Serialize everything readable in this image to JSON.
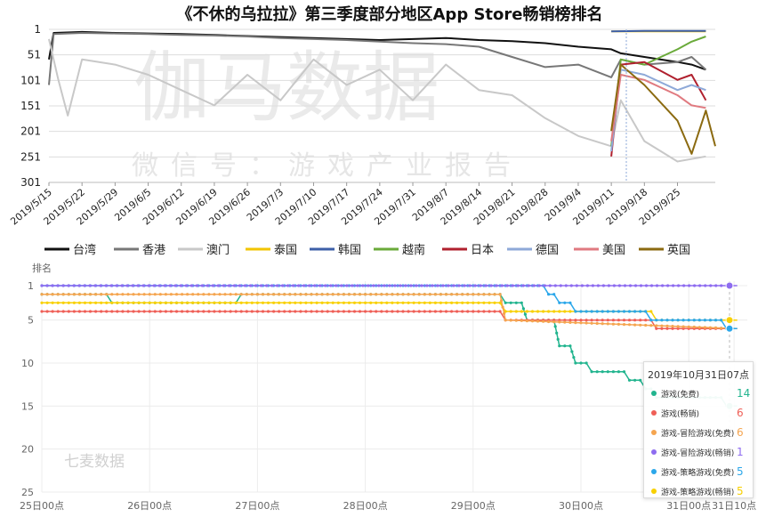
{
  "chart_data": [
    {
      "type": "line",
      "title": "《不休的乌拉拉》第三季度部分地区App Store畅销榜排名",
      "y_reversed": true,
      "ylim": [
        1,
        301
      ],
      "yticks": [
        "1",
        "51",
        "101",
        "151",
        "201",
        "251",
        "301"
      ],
      "xlim": [
        "2019/5/15",
        "2019/10/3"
      ],
      "xticks": [
        "2019/5/15",
        "2019/5/22",
        "2019/5/29",
        "2019/6/5",
        "2019/6/12",
        "2019/6/19",
        "2019/6/26",
        "2019/7/3",
        "2019/7/10",
        "2019/7/17",
        "2019/7/24",
        "2019/7/31",
        "2019/8/7",
        "2019/8/14",
        "2019/8/21",
        "2019/8/28",
        "2019/9/4",
        "2019/9/11",
        "2019/9/18",
        "2019/9/25"
      ],
      "grid": true,
      "legend_position": "bottom",
      "watermark": "伽马数据",
      "watermark_sub": "微信号：游戏产业报告",
      "series": [
        {
          "name": "台湾",
          "color": "#111111",
          "points": [
            [
              "2019/5/15",
              60
            ],
            [
              "2019/5/16",
              8
            ],
            [
              "2019/5/22",
              6
            ],
            [
              "2019/5/29",
              8
            ],
            [
              "2019/6/5",
              9
            ],
            [
              "2019/6/12",
              10
            ],
            [
              "2019/6/19",
              12
            ],
            [
              "2019/6/26",
              14
            ],
            [
              "2019/7/3",
              16
            ],
            [
              "2019/7/10",
              18
            ],
            [
              "2019/7/17",
              20
            ],
            [
              "2019/7/24",
              22
            ],
            [
              "2019/7/31",
              20
            ],
            [
              "2019/8/7",
              18
            ],
            [
              "2019/8/14",
              22
            ],
            [
              "2019/8/21",
              24
            ],
            [
              "2019/8/28",
              28
            ],
            [
              "2019/9/4",
              35
            ],
            [
              "2019/9/11",
              40
            ],
            [
              "2019/9/13",
              48
            ],
            [
              "2019/9/18",
              55
            ],
            [
              "2019/9/25",
              65
            ],
            [
              "2019/9/28",
              70
            ],
            [
              "2019/10/1",
              80
            ]
          ]
        },
        {
          "name": "香港",
          "color": "#777777",
          "points": [
            [
              "2019/5/15",
              110
            ],
            [
              "2019/5/16",
              10
            ],
            [
              "2019/5/22",
              8
            ],
            [
              "2019/5/29",
              9
            ],
            [
              "2019/6/5",
              10
            ],
            [
              "2019/6/12",
              12
            ],
            [
              "2019/6/19",
              13
            ],
            [
              "2019/6/26",
              15
            ],
            [
              "2019/7/3",
              18
            ],
            [
              "2019/7/10",
              20
            ],
            [
              "2019/7/17",
              22
            ],
            [
              "2019/7/24",
              25
            ],
            [
              "2019/7/31",
              28
            ],
            [
              "2019/8/7",
              30
            ],
            [
              "2019/8/14",
              35
            ],
            [
              "2019/8/21",
              55
            ],
            [
              "2019/8/28",
              75
            ],
            [
              "2019/9/4",
              70
            ],
            [
              "2019/9/11",
              95
            ],
            [
              "2019/9/13",
              60
            ],
            [
              "2019/9/18",
              70
            ],
            [
              "2019/9/25",
              65
            ],
            [
              "2019/9/28",
              55
            ],
            [
              "2019/10/1",
              80
            ]
          ]
        },
        {
          "name": "澳门",
          "color": "#c8c8c8",
          "points": [
            [
              "2019/5/15",
              20
            ],
            [
              "2019/5/17",
              100
            ],
            [
              "2019/5/19",
              170
            ],
            [
              "2019/5/22",
              60
            ],
            [
              "2019/5/29",
              70
            ],
            [
              "2019/6/5",
              90
            ],
            [
              "2019/6/12",
              120
            ],
            [
              "2019/6/19",
              150
            ],
            [
              "2019/6/26",
              90
            ],
            [
              "2019/7/3",
              140
            ],
            [
              "2019/7/10",
              60
            ],
            [
              "2019/7/17",
              110
            ],
            [
              "2019/7/24",
              80
            ],
            [
              "2019/7/31",
              140
            ],
            [
              "2019/8/7",
              70
            ],
            [
              "2019/8/14",
              120
            ],
            [
              "2019/8/21",
              130
            ],
            [
              "2019/8/28",
              175
            ],
            [
              "2019/9/4",
              210
            ],
            [
              "2019/9/11",
              230
            ],
            [
              "2019/9/13",
              140
            ],
            [
              "2019/9/18",
              220
            ],
            [
              "2019/9/25",
              260
            ],
            [
              "2019/10/1",
              250
            ]
          ]
        },
        {
          "name": "泰国",
          "color": "#f2c400",
          "points": [
            [
              "2019/9/11",
              5
            ],
            [
              "2019/9/18",
              5
            ],
            [
              "2019/9/25",
              5
            ],
            [
              "2019/10/1",
              5
            ]
          ]
        },
        {
          "name": "韩国",
          "color": "#3d5fa8",
          "points": [
            [
              "2019/9/11",
              5
            ],
            [
              "2019/9/18",
              4
            ],
            [
              "2019/9/25",
              4
            ],
            [
              "2019/10/1",
              4
            ]
          ]
        },
        {
          "name": "越南",
          "color": "#6aaa3a",
          "points": [
            [
              "2019/9/11",
              230
            ],
            [
              "2019/9/13",
              60
            ],
            [
              "2019/9/18",
              70
            ],
            [
              "2019/9/25",
              40
            ],
            [
              "2019/9/28",
              25
            ],
            [
              "2019/10/1",
              15
            ]
          ]
        },
        {
          "name": "日本",
          "color": "#b0202e",
          "points": [
            [
              "2019/9/11",
              250
            ],
            [
              "2019/9/13",
              70
            ],
            [
              "2019/9/18",
              65
            ],
            [
              "2019/9/25",
              100
            ],
            [
              "2019/9/28",
              90
            ],
            [
              "2019/10/1",
              140
            ]
          ]
        },
        {
          "name": "德国",
          "color": "#8ea9d8",
          "points": [
            [
              "2019/9/11",
              240
            ],
            [
              "2019/9/13",
              80
            ],
            [
              "2019/9/18",
              90
            ],
            [
              "2019/9/25",
              120
            ],
            [
              "2019/9/28",
              110
            ],
            [
              "2019/10/1",
              120
            ]
          ]
        },
        {
          "name": "美国",
          "color": "#e07a80",
          "points": [
            [
              "2019/9/11",
              220
            ],
            [
              "2019/9/13",
              90
            ],
            [
              "2019/9/18",
              100
            ],
            [
              "2019/9/25",
              130
            ],
            [
              "2019/9/28",
              150
            ],
            [
              "2019/10/1",
              155
            ]
          ]
        },
        {
          "name": "英国",
          "color": "#8b6a10",
          "points": [
            [
              "2019/9/11",
              200
            ],
            [
              "2019/9/13",
              70
            ],
            [
              "2019/9/18",
              110
            ],
            [
              "2019/9/25",
              180
            ],
            [
              "2019/9/28",
              245
            ],
            [
              "2019/10/1",
              160
            ],
            [
              "2019/10/3",
              230
            ]
          ]
        }
      ]
    },
    {
      "type": "line",
      "ylabel": "排名",
      "y_reversed": true,
      "ylim": [
        1,
        25
      ],
      "yticks": [
        "1",
        "5",
        "10",
        "15",
        "20",
        "25"
      ],
      "xticks": [
        "25日00点",
        "26日00点",
        "27日00点",
        "28日00点",
        "29日00点",
        "30日00点",
        "31日00点",
        "31日10点"
      ],
      "grid": true,
      "watermark": "七麦数据",
      "tooltip": {
        "title": "2019年10月31日07点",
        "rows": [
          {
            "label": "游戏(免费)",
            "value": "14",
            "color": "#21b48e"
          },
          {
            "label": "游戏(畅销)",
            "value": "6",
            "color": "#ef5f57"
          },
          {
            "label": "游戏-冒险游戏(免费)",
            "value": "6",
            "color": "#f5a550"
          },
          {
            "label": "游戏-冒险游戏(畅销)",
            "value": "1",
            "color": "#8e6cf0"
          },
          {
            "label": "游戏-策略游戏(免费)",
            "value": "5",
            "color": "#2ba7ea"
          },
          {
            "label": "游戏-策略游戏(畅销)",
            "value": "5",
            "color": "#f8d000"
          }
        ]
      },
      "series": [
        {
          "name": "游戏(免费)",
          "color": "#21b48e",
          "points": [
            [
              0,
              2
            ],
            [
              0.6,
              2
            ],
            [
              0.65,
              3
            ],
            [
              1.8,
              3
            ],
            [
              1.85,
              2
            ],
            [
              4.25,
              2
            ],
            [
              4.3,
              3
            ],
            [
              4.45,
              3
            ],
            [
              4.5,
              5
            ],
            [
              4.75,
              5
            ],
            [
              4.8,
              8
            ],
            [
              4.9,
              8
            ],
            [
              4.95,
              10
            ],
            [
              5.05,
              10
            ],
            [
              5.1,
              11
            ],
            [
              5.4,
              11
            ],
            [
              5.45,
              12
            ],
            [
              5.55,
              12
            ],
            [
              5.6,
              13
            ],
            [
              5.65,
              13
            ],
            [
              5.7,
              14
            ],
            [
              6.3,
              14
            ],
            [
              6.35,
              15
            ],
            [
              6.45,
              15
            ]
          ]
        },
        {
          "name": "游戏(畅销)",
          "color": "#ef5f57",
          "points": [
            [
              0,
              4
            ],
            [
              4.25,
              4
            ],
            [
              4.3,
              5
            ],
            [
              5.65,
              5
            ],
            [
              5.7,
              6
            ],
            [
              6.45,
              6
            ]
          ]
        },
        {
          "name": "游戏-冒险游戏(免费)",
          "color": "#f5a550",
          "points": [
            [
              0,
              2
            ],
            [
              4.25,
              2
            ],
            [
              4.3,
              5
            ],
            [
              6.45,
              6
            ]
          ]
        },
        {
          "name": "游戏-冒险游戏(畅销)",
          "color": "#8e6cf0",
          "points": [
            [
              0,
              1
            ],
            [
              6.45,
              1
            ]
          ]
        },
        {
          "name": "游戏-策略游戏(免费)",
          "color": "#2ba7ea",
          "points": [
            [
              0,
              1
            ],
            [
              4.65,
              1
            ],
            [
              4.7,
              2
            ],
            [
              4.75,
              2
            ],
            [
              4.8,
              3
            ],
            [
              4.9,
              3
            ],
            [
              4.95,
              4
            ],
            [
              5.6,
              4
            ],
            [
              5.65,
              5
            ],
            [
              6.3,
              5
            ],
            [
              6.35,
              6
            ],
            [
              6.45,
              6
            ]
          ]
        },
        {
          "name": "游戏-策略游戏(畅销)",
          "color": "#f8d000",
          "points": [
            [
              0,
              3
            ],
            [
              4.25,
              3
            ],
            [
              4.3,
              4
            ],
            [
              5.65,
              4
            ],
            [
              5.7,
              5
            ],
            [
              6.45,
              5
            ]
          ]
        }
      ]
    }
  ]
}
